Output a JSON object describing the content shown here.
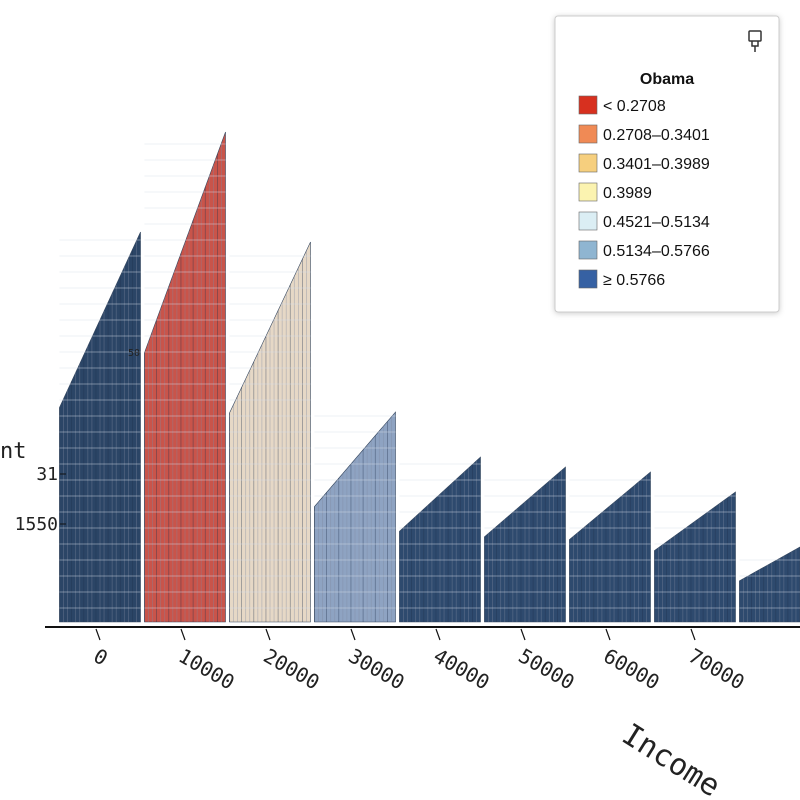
{
  "chart_data": {
    "type": "histogram3d",
    "xlabel": "Income",
    "ylabel": "nt",
    "bins": [
      -5000,
      5000,
      15000,
      25000,
      35000,
      45000,
      55000,
      65000,
      75000,
      85000
    ],
    "values": [
      12090,
      15190,
      11780,
      6510,
      5115,
      4805,
      4650,
      4030,
      2325
    ],
    "colors": [
      "#2b4566",
      "#c9544a",
      "#e6d8c6",
      "#8ea3c2",
      "#2e4a6e",
      "#2e4a6e",
      "#2e4a6e",
      "#2e4a6e",
      "#2e4a6e"
    ],
    "xticks": [
      0,
      10000,
      20000,
      30000,
      40000,
      50000,
      60000,
      70000
    ],
    "yticks": [
      1550,
      {
        "value": 3100,
        "label": "31"
      }
    ],
    "annotations": [
      "50"
    ],
    "legend": {
      "title": "Obama",
      "items": [
        {
          "label": "< 0.2708",
          "color": "#d7301f"
        },
        {
          "label": "0.2708–0.3401",
          "color": "#f08a55"
        },
        {
          "label": "0.3401–0.3989",
          "color": "#f6cf7e"
        },
        {
          "label": "0.3989",
          "color": "#fbf3b0"
        },
        {
          "label": "0.4521–0.5134",
          "color": "#dbeef4"
        },
        {
          "label": "0.5134–0.5766",
          "color": "#8fb5d1"
        },
        {
          "label": "≥ 0.5766",
          "color": "#3661a3"
        }
      ]
    }
  }
}
